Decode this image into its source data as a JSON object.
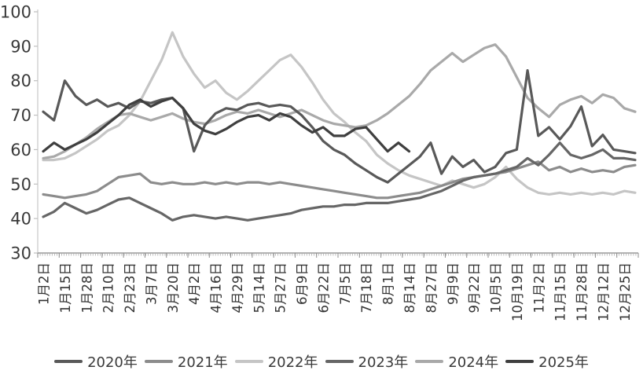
{
  "chart_data": {
    "type": "line",
    "title": "",
    "xlabel": "",
    "ylabel": "",
    "grid": false,
    "legend_position": "bottom",
    "y_axis": {
      "min": 30,
      "max": 100,
      "ticks": [
        100,
        90,
        80,
        70,
        60,
        50,
        40,
        30
      ]
    },
    "x_axis": {
      "labels": [
        "1月2日",
        "1月15日",
        "1月28日",
        "2月10日",
        "2月23日",
        "3月7日",
        "3月20日",
        "4月2日",
        "4月16日",
        "4月29日",
        "5月14日",
        "5月27日",
        "6月9日",
        "6月22日",
        "7月5日",
        "7月18日",
        "8月1日",
        "8月14日",
        "8月27日",
        "9月9日",
        "9月22日",
        "10月5日",
        "10月19日",
        "11月2日",
        "11月15日",
        "11月28日",
        "12月12日",
        "12月25日"
      ]
    },
    "series": [
      {
        "name": "2020年",
        "color": "#595959",
        "values": [
          71,
          68.5,
          80,
          75.5,
          73,
          74.5,
          72.5,
          73.5,
          72,
          74,
          73.5,
          74.5,
          75,
          72,
          59.5,
          67,
          70.5,
          72,
          71.5,
          73,
          73.5,
          72.5,
          73,
          72.5,
          70,
          66.5,
          62.5,
          60,
          58.5,
          56,
          54,
          52,
          50.5,
          53,
          55.5,
          58,
          62,
          53,
          58,
          55,
          57,
          53.5,
          55,
          59,
          60,
          83,
          64,
          66.5,
          63,
          66.8,
          72.5,
          61,
          64.3,
          60,
          59.5,
          59
        ]
      },
      {
        "name": "2021年",
        "color": "#8c8c8c",
        "values": [
          47,
          46.5,
          46,
          46.5,
          47,
          48,
          50,
          52,
          52.5,
          53,
          50.5,
          50,
          50.5,
          50,
          50,
          50.5,
          50,
          50.5,
          50,
          50.5,
          50.5,
          50,
          50.5,
          50,
          49.5,
          49,
          48.5,
          48,
          47.5,
          47,
          46.5,
          46,
          46,
          46.5,
          47,
          47.5,
          48.5,
          49.5,
          50.5,
          51.5,
          52,
          52.5,
          53,
          53.5,
          54.5,
          55.5,
          56.5,
          54,
          55,
          53.5,
          54.5,
          53.5,
          54,
          53.5,
          55,
          55.5
        ]
      },
      {
        "name": "2022年",
        "color": "#c5c5c5",
        "values": [
          57,
          57,
          57.5,
          59,
          61,
          63,
          65.5,
          67,
          70,
          74,
          80,
          86,
          94,
          87,
          82,
          78,
          80,
          76.5,
          74.5,
          77,
          80,
          83,
          86,
          87.5,
          84,
          79.5,
          74.5,
          70.5,
          68,
          65,
          62.5,
          58.5,
          56,
          54,
          52.5,
          51.5,
          50.5,
          49.5,
          51,
          50,
          49,
          50,
          52,
          55,
          51.5,
          49,
          47.5,
          47,
          47.5,
          47,
          47.5,
          47,
          47.5,
          47,
          48,
          47.5
        ]
      },
      {
        "name": "2023年",
        "color": "#666666",
        "values": [
          40.5,
          42,
          44.5,
          43,
          41.5,
          42.5,
          44,
          45.5,
          46,
          44.5,
          43,
          41.5,
          39.5,
          40.5,
          41,
          40.5,
          40,
          40.5,
          40,
          39.5,
          40,
          40.5,
          41,
          41.5,
          42.5,
          43,
          43.5,
          43.5,
          44,
          44,
          44.5,
          44.5,
          44.5,
          45,
          45.5,
          46,
          47,
          48,
          49.5,
          51,
          52,
          52.5,
          53,
          54,
          55,
          57.5,
          55.5,
          58.5,
          62,
          58.5,
          57.5,
          58.5,
          60,
          57.5,
          57.5,
          57
        ]
      },
      {
        "name": "2024年",
        "color": "#a9a9a9",
        "values": [
          57.5,
          58,
          59.5,
          61.5,
          63.5,
          66,
          68,
          70,
          70.5,
          69.5,
          68.5,
          69.5,
          70.5,
          69,
          68,
          67.5,
          68.5,
          70,
          71,
          70.5,
          71.5,
          70.5,
          69.5,
          70.5,
          71.5,
          70,
          68.5,
          67.5,
          67,
          66.5,
          67,
          68.5,
          70.5,
          73,
          75.5,
          79,
          83,
          85.5,
          88,
          85.5,
          87.5,
          89.5,
          90.5,
          87,
          81,
          75,
          72,
          69.5,
          73,
          74.5,
          75.5,
          73.5,
          76,
          75,
          72,
          71
        ]
      },
      {
        "name": "2025年",
        "color": "#3f3f3f",
        "values": [
          59.5,
          62,
          60,
          61.5,
          63,
          65,
          67.5,
          70,
          73,
          74.5,
          72.5,
          74,
          75,
          72,
          67.5,
          65.5,
          64.5,
          66,
          68,
          69.5,
          70,
          68.5,
          70.5,
          69.5,
          67,
          65,
          66.5,
          64,
          64,
          66,
          66.5,
          63,
          59.5,
          62,
          59.5
        ]
      }
    ]
  }
}
